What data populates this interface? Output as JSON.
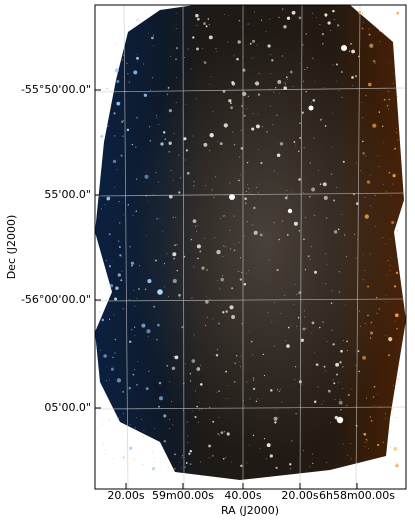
{
  "figure": {
    "x_label": "RA (J2000)",
    "y_label": "Dec (J2000)",
    "x_ticks": [
      "20.00s",
      "59m00.00s",
      "40.00s",
      "20.00s",
      "6h58m00.00s"
    ],
    "y_ticks": [
      "-55°50'00.0\"",
      "55'00.0\"",
      "-56°00'00.0\"",
      "05'00.0\""
    ]
  }
}
